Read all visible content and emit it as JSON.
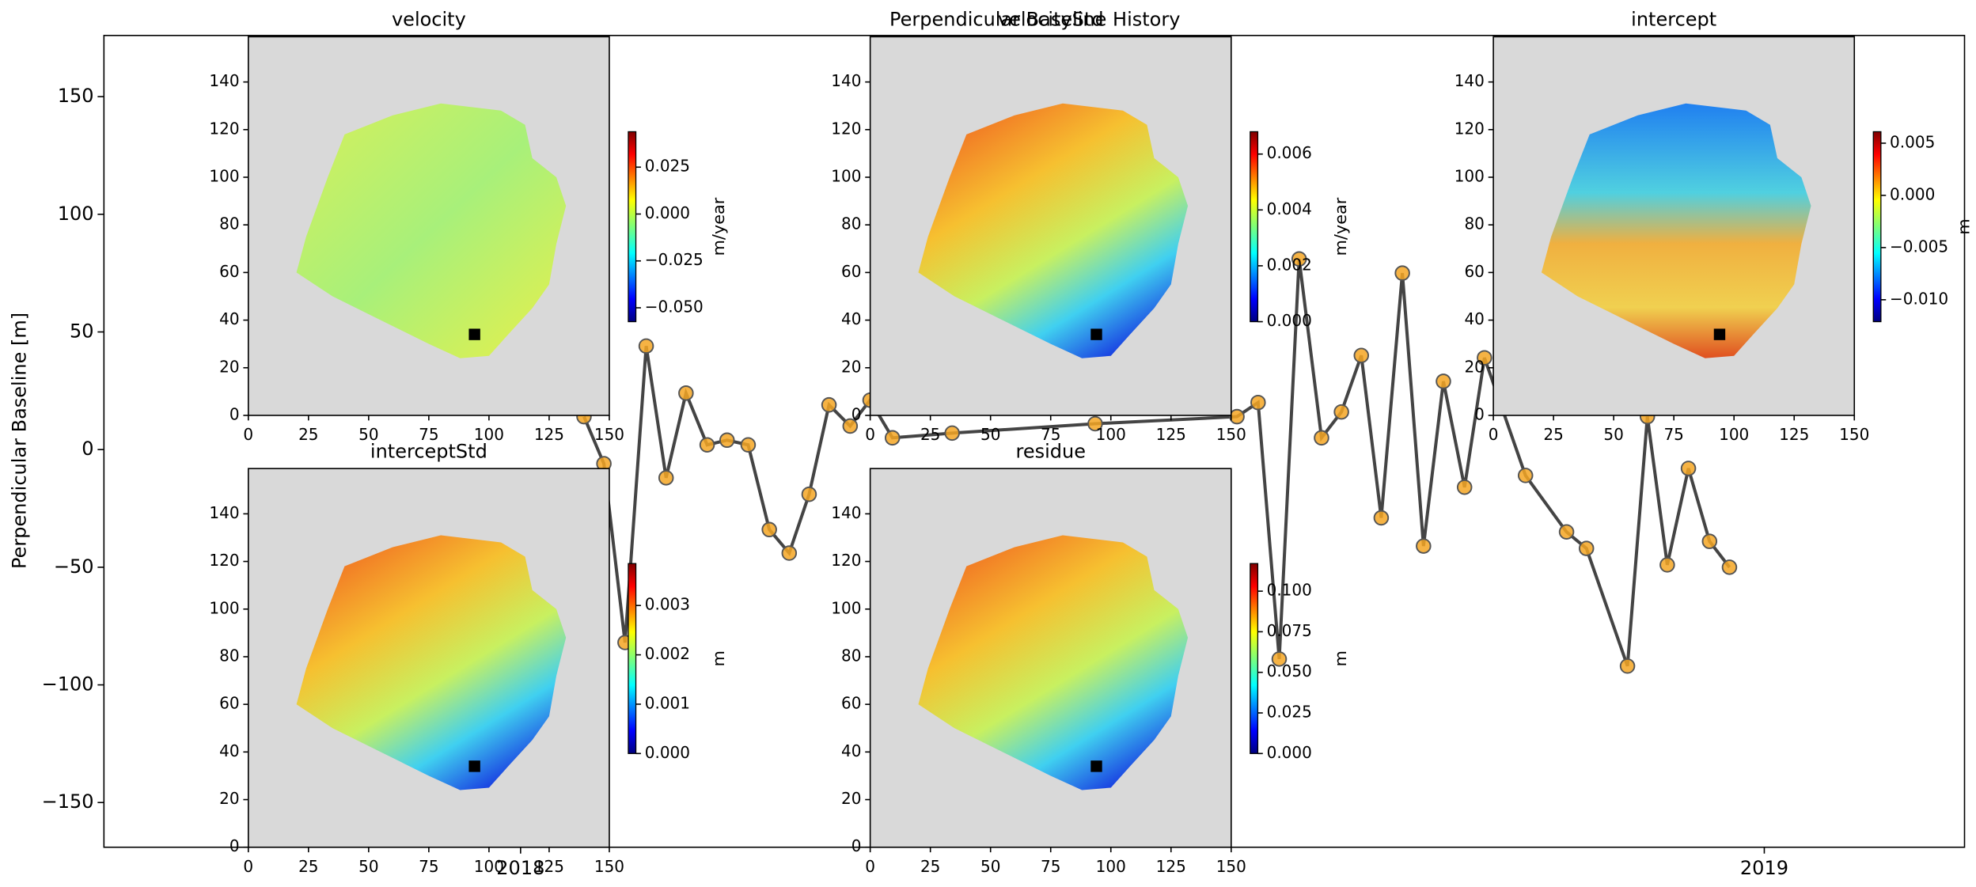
{
  "chart_data": [
    {
      "type": "line",
      "title": "Perpendicular Baseline History",
      "ylabel": "Perpendicular Baseline [m]",
      "x": [
        2018.051,
        2018.067,
        2018.084,
        2018.101,
        2018.117,
        2018.133,
        2018.15,
        2018.166,
        2018.183,
        2018.2,
        2018.216,
        2018.232,
        2018.248,
        2018.265,
        2018.281,
        2018.299,
        2018.347,
        2018.462,
        2018.576,
        2018.593,
        2018.61,
        2018.626,
        2018.644,
        2018.66,
        2018.676,
        2018.692,
        2018.709,
        2018.726,
        2018.742,
        2018.759,
        2018.775,
        2018.808,
        2018.841,
        2018.857,
        2018.89,
        2018.906,
        2018.922,
        2018.939,
        2018.956,
        2018.972
      ],
      "values": [
        14,
        -6,
        -82,
        44,
        -12,
        24,
        2,
        4,
        2,
        -34,
        -44,
        -19,
        19,
        10,
        21,
        5,
        7,
        11,
        14,
        20,
        -89,
        81,
        5,
        16,
        40,
        -29,
        75,
        -41,
        29,
        -16,
        39,
        -11,
        -35,
        -42,
        -92,
        14,
        -49,
        -8,
        -39,
        -50
      ],
      "color": "#444444",
      "marker_color": "#f5a623",
      "xlim": [
        2017.665,
        2019.161
      ],
      "xticks": [
        2018,
        2019
      ],
      "ylim": [
        -169,
        176
      ],
      "yticks": [
        {
          "value": -150,
          "label": "−150"
        },
        {
          "value": -100,
          "label": "−100"
        },
        {
          "value": -50,
          "label": "−50"
        },
        0,
        50,
        100,
        150
      ]
    },
    {
      "type": "image",
      "title": "velocity",
      "colormap": "jet",
      "clim": [
        -0.0574,
        0.0439
      ],
      "colorbar_label": "m/year",
      "cticks": [
        {
          "value": -0.05,
          "label": "−0.050"
        },
        {
          "value": -0.025,
          "label": "−0.025"
        },
        {
          "value": 0,
          "label": "0.000"
        },
        0.025
      ],
      "ref_x": 94,
      "ref_y": 34,
      "xlim": [
        0,
        150
      ],
      "ylim": [
        0,
        159
      ],
      "xticks": [
        0,
        25,
        50,
        75,
        100,
        125,
        150
      ],
      "yticks": [
        0,
        20,
        40,
        60,
        80,
        100,
        120,
        140
      ]
    },
    {
      "type": "image",
      "title": "velocityStd",
      "colormap": "jet",
      "clim": [
        0,
        0.0068
      ],
      "colorbar_label": "m/year",
      "cticks": [
        {
          "value": 0,
          "label": "0.000"
        },
        0.002,
        0.004,
        0.006
      ],
      "ref_x": 94,
      "ref_y": 34,
      "xlim": [
        0,
        150
      ],
      "ylim": [
        0,
        159
      ],
      "xticks": [
        0,
        25,
        50,
        75,
        100,
        125,
        150
      ],
      "yticks": [
        0,
        20,
        40,
        60,
        80,
        100,
        120,
        140
      ]
    },
    {
      "type": "image",
      "title": "intercept",
      "colormap": "jet",
      "clim": [
        -0.0121,
        0.0061
      ],
      "colorbar_label": "m",
      "cticks": [
        {
          "value": -0.01,
          "label": "−0.010"
        },
        {
          "value": -0.005,
          "label": "−0.005"
        },
        {
          "value": 0,
          "label": "0.000"
        },
        0.005
      ],
      "ref_x": 94,
      "ref_y": 34,
      "xlim": [
        0,
        150
      ],
      "ylim": [
        0,
        159
      ],
      "xticks": [
        0,
        25,
        50,
        75,
        100,
        125,
        150
      ],
      "yticks": [
        0,
        20,
        40,
        60,
        80,
        100,
        120,
        140
      ]
    },
    {
      "type": "image",
      "title": "interceptStd",
      "colormap": "jet",
      "clim": [
        0,
        0.00385
      ],
      "colorbar_label": "m",
      "cticks": [
        {
          "value": 0,
          "label": "0.000"
        },
        0.001,
        0.002,
        0.003
      ],
      "ref_x": 94,
      "ref_y": 34,
      "xlim": [
        0,
        150
      ],
      "ylim": [
        0,
        159
      ],
      "xticks": [
        0,
        25,
        50,
        75,
        100,
        125,
        150
      ],
      "yticks": [
        0,
        20,
        40,
        60,
        80,
        100,
        120,
        140
      ]
    },
    {
      "type": "image",
      "title": "residue",
      "colormap": "jet",
      "clim": [
        0,
        0.117
      ],
      "colorbar_label": "m",
      "cticks": [
        {
          "value": 0,
          "label": "0.000"
        },
        {
          "value": 0.025,
          "label": "0.025"
        },
        {
          "value": 0.05,
          "label": "0.050"
        },
        {
          "value": 0.075,
          "label": "0.075"
        },
        {
          "value": 0.1,
          "label": "0.100"
        }
      ],
      "ref_x": 94,
      "ref_y": 34,
      "xlim": [
        0,
        150
      ],
      "ylim": [
        0,
        159
      ],
      "xticks": [
        0,
        25,
        50,
        75,
        100,
        125,
        150
      ],
      "yticks": [
        0,
        20,
        40,
        60,
        80,
        100,
        120,
        140
      ]
    }
  ]
}
